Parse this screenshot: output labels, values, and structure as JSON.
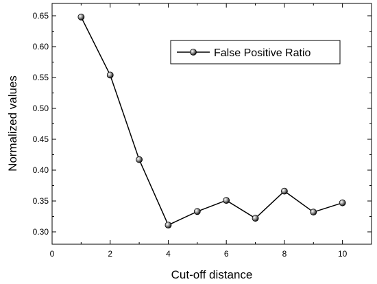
{
  "chart_data": {
    "type": "line",
    "xlabel": "Cut-off distance",
    "ylabel": "Normalized values",
    "xlim": [
      0,
      11
    ],
    "ylim": [
      0.28,
      0.67
    ],
    "x_ticks": [
      "0",
      "2",
      "4",
      "6",
      "8",
      "10"
    ],
    "y_ticks": [
      "0.30",
      "0.35",
      "0.40",
      "0.45",
      "0.50",
      "0.55",
      "0.60",
      "0.65"
    ],
    "legend_position": "top-right",
    "grid": false,
    "series": [
      {
        "name": "False Positive Ratio",
        "color": "#000000",
        "marker": "sphere",
        "x": [
          1,
          2,
          3,
          4,
          5,
          6,
          7,
          8,
          9,
          10
        ],
        "y": [
          0.648,
          0.554,
          0.417,
          0.311,
          0.333,
          0.351,
          0.322,
          0.366,
          0.332,
          0.347
        ]
      }
    ]
  }
}
